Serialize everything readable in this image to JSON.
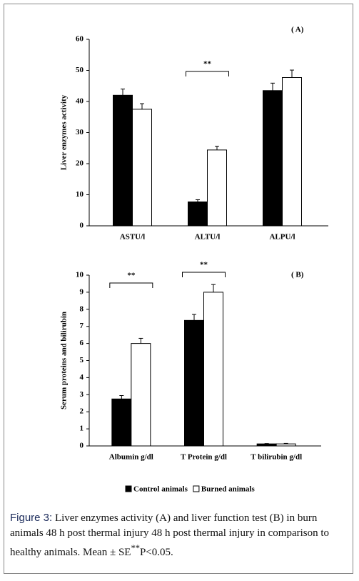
{
  "chart_data": [
    {
      "type": "bar",
      "panel_label": "( A)",
      "y_label": "Liver enzymes activity",
      "categories": [
        "ASTU/l",
        "ALTU/l",
        "ALPU/l"
      ],
      "series": [
        {
          "color": "#000000",
          "values": [
            42,
            7.7,
            43.5
          ],
          "errors": [
            2,
            0.7,
            2.4
          ]
        },
        {
          "color": "#ffffff",
          "values": [
            37.5,
            24.4,
            47.7
          ],
          "errors": [
            1.8,
            1.2,
            2.4
          ]
        }
      ],
      "ylim": [
        0,
        60
      ],
      "yticks": [
        0,
        10,
        20,
        30,
        40,
        50,
        60
      ],
      "annotations": [
        {
          "text": "**",
          "category": "ALTU/l"
        }
      ]
    },
    {
      "type": "bar",
      "panel_label": "( B)",
      "y_label": "Serum proteins and bilirubin",
      "categories": [
        "Albumin g/dl",
        "T Protein g/dl",
        "T bilirubin g/dl"
      ],
      "series": [
        {
          "name": "Control animals",
          "color": "#000000",
          "values": [
            2.75,
            7.35,
            0.12
          ],
          "errors": [
            0.2,
            0.35,
            0.02
          ]
        },
        {
          "name": "Burned animals",
          "color": "#ffffff",
          "values": [
            6.0,
            9.0,
            0.12
          ],
          "errors": [
            0.3,
            0.45,
            0.03
          ]
        }
      ],
      "ylim": [
        0,
        10
      ],
      "yticks": [
        0,
        1,
        2,
        3,
        4,
        5,
        6,
        7,
        8,
        9,
        10
      ],
      "annotations": [
        {
          "text": "**",
          "category": "Albumin g/dl"
        },
        {
          "text": "**",
          "category": "T Protein g/dl"
        }
      ]
    }
  ],
  "caption": {
    "label": "Figure 3:",
    "text": "Liver enzymes activity (A) and liver function test (B) in burn animals 48 h post thermal injury 48 h post thermal injury in comparison to healthy animals. Mean ± SE",
    "superscript": "**",
    "text_after": "P<0.05."
  }
}
